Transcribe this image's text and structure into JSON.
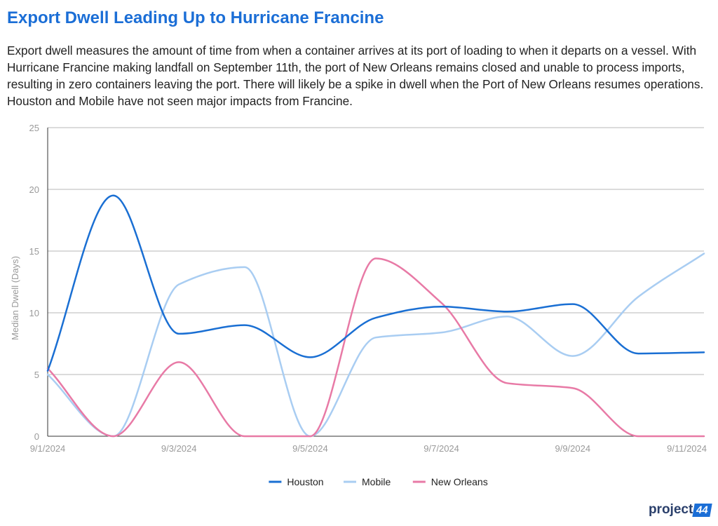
{
  "title": "Export Dwell Leading Up to Hurricane Francine",
  "subtitle": "Export dwell measures the amount of time from when a container arrives at its port of loading to when it departs on a vessel. With Hurricane Francine making landfall on September 11th, the port of New Orleans remains closed and unable to process imports, resulting in zero containers leaving the port. There will likely be a spike in dwell when the Port of New Orleans resumes operations. Houston and Mobile have not seen major impacts from Francine.",
  "logo": {
    "text": "project",
    "badge": "44"
  },
  "chart_data": {
    "type": "line",
    "ylabel": "Median Dwell (Days)",
    "xlabel": "",
    "ylim": [
      0,
      25
    ],
    "y_ticks": [
      0,
      5,
      10,
      15,
      20,
      25
    ],
    "x": [
      "9/1/2024",
      "9/2/2024",
      "9/3/2024",
      "9/4/2024",
      "9/5/2024",
      "9/6/2024",
      "9/7/2024",
      "9/8/2024",
      "9/9/2024",
      "9/10/2024",
      "9/11/2024"
    ],
    "x_tick_labels": [
      "9/1/2024",
      "",
      "9/3/2024",
      "",
      "9/5/2024",
      "",
      "9/7/2024",
      "",
      "9/9/2024",
      "",
      "9/11/2024"
    ],
    "grid": true,
    "legend_position": "bottom",
    "series": [
      {
        "name": "Houston",
        "color": "#1a6fd3",
        "values": [
          5.3,
          19.5,
          8.3,
          9.0,
          6.4,
          9.6,
          10.5,
          10.1,
          10.7,
          6.7,
          6.8
        ]
      },
      {
        "name": "Mobile",
        "color": "#a9cdf2",
        "values": [
          5.0,
          0.0,
          12.3,
          13.7,
          0.0,
          8.0,
          8.4,
          9.7,
          6.5,
          11.3,
          14.8
        ]
      },
      {
        "name": "New Orleans",
        "color": "#e87aa6",
        "values": [
          5.5,
          0.0,
          6.0,
          0.0,
          0.0,
          14.4,
          10.8,
          4.3,
          3.9,
          0.0,
          0.0
        ]
      }
    ]
  }
}
